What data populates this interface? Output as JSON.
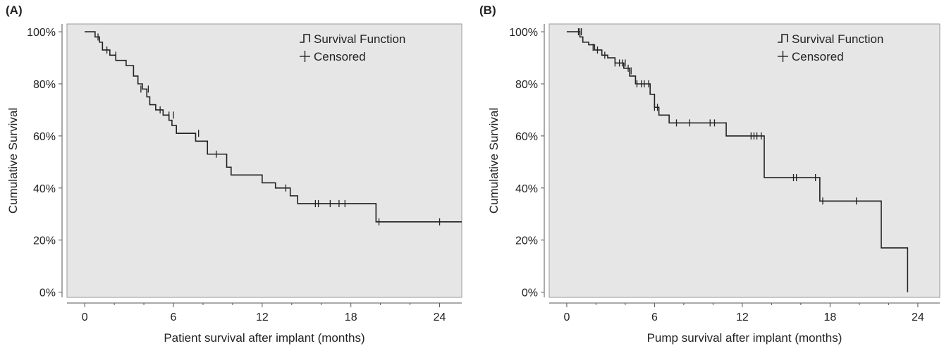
{
  "colors": {
    "plot_bg": "#e6e6e6",
    "line": "#222222",
    "axis": "#555555"
  },
  "legend": {
    "survival_label": "Survival Function",
    "censored_label": "Censored"
  },
  "chart_data": [
    {
      "panel_label": "(A)",
      "type": "line",
      "step": true,
      "title": "",
      "xlabel": "Patient survival after implant (months)",
      "ylabel": "Cumulative Survival",
      "xlim": [
        -1.2,
        25.5
      ],
      "ylim": [
        -2,
        103
      ],
      "xticks": [
        0,
        6,
        12,
        18,
        24
      ],
      "yticks": [
        0,
        20,
        40,
        60,
        80,
        100
      ],
      "ytick_format": "percent",
      "legend": "top-right",
      "grid": false,
      "series": [
        {
          "name": "Survival Function",
          "x": [
            0,
            0.7,
            1.0,
            1.2,
            1.7,
            2.1,
            2.8,
            3.3,
            3.6,
            3.9,
            4.2,
            4.4,
            4.8,
            5.3,
            5.7,
            5.9,
            6.2,
            7.5,
            8.3,
            9.6,
            9.9,
            12.0,
            12.9,
            13.9,
            14.4,
            19.7,
            25.5
          ],
          "y": [
            100,
            98,
            96,
            93,
            91,
            89,
            87,
            83,
            80,
            78,
            75,
            72,
            70,
            68,
            66,
            64,
            61,
            58,
            53,
            48,
            45,
            42,
            40,
            37,
            34,
            27,
            27
          ]
        }
      ],
      "censored": {
        "name": "Censored",
        "x": [
          0.9,
          1.5,
          2.1,
          3.8,
          4.3,
          5.1,
          5.7,
          6.0,
          7.7,
          8.9,
          13.6,
          15.6,
          15.8,
          16.6,
          17.2,
          17.6,
          19.9,
          24.0
        ],
        "y": [
          98,
          93,
          91,
          78,
          78,
          70,
          68,
          68,
          61,
          53,
          40,
          34,
          34,
          34,
          34,
          34,
          27,
          27
        ]
      }
    },
    {
      "panel_label": "(B)",
      "type": "line",
      "step": true,
      "title": "",
      "xlabel": "Pump survival after implant (months)",
      "ylabel": "Cumulative Survival",
      "xlim": [
        -1.2,
        25.5
      ],
      "ylim": [
        -2,
        103
      ],
      "xticks": [
        0,
        6,
        12,
        18,
        24
      ],
      "yticks": [
        0,
        20,
        40,
        60,
        80,
        100
      ],
      "ytick_format": "percent",
      "legend": "top-right",
      "grid": false,
      "series": [
        {
          "name": "Survival Function",
          "x": [
            0,
            0.9,
            1.1,
            1.5,
            1.9,
            2.4,
            2.8,
            3.3,
            3.9,
            4.3,
            4.7,
            5.7,
            6.0,
            6.3,
            7.0,
            10.9,
            13.5,
            17.3,
            21.5,
            23.3
          ],
          "y": [
            100,
            98,
            96,
            95,
            93,
            91,
            90,
            88,
            86,
            83,
            80,
            76,
            71,
            68,
            65,
            60,
            44,
            35,
            17,
            0
          ]
        }
      ],
      "censored": {
        "name": "Censored",
        "x": [
          0.8,
          0.9,
          1.0,
          1.8,
          2.1,
          2.6,
          3.3,
          3.6,
          3.8,
          4.0,
          4.2,
          4.4,
          4.8,
          5.1,
          5.3,
          5.6,
          6.0,
          6.2,
          7.5,
          8.4,
          9.8,
          10.1,
          12.6,
          12.8,
          13.0,
          13.3,
          15.5,
          15.7,
          17.0,
          17.5,
          19.8
        ],
        "y": [
          100,
          100,
          100,
          94,
          93,
          91,
          88,
          88,
          88,
          88,
          86,
          85,
          80,
          80,
          80,
          80,
          71,
          71,
          65,
          65,
          65,
          65,
          60,
          60,
          60,
          60,
          44,
          44,
          44,
          35,
          35
        ]
      }
    }
  ]
}
